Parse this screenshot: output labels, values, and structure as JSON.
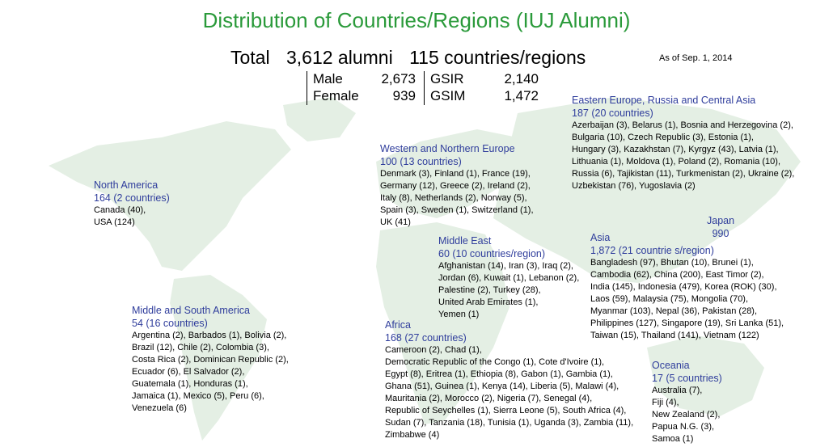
{
  "title": "Distribution of Countries/Regions (IUJ Alumni)",
  "total": {
    "label": "Total",
    "alumni": "3,612 alumni",
    "countries": "115 countries/regions"
  },
  "as_of": "As of Sep. 1, 2014",
  "breakdown": {
    "male_label": "Male",
    "male_value": "2,673",
    "female_label": "Female",
    "female_value": "939",
    "gsir_label": "GSIR",
    "gsir_value": "2,140",
    "gsim_label": "GSIM",
    "gsim_value": "1,472"
  },
  "colors": {
    "title": "#2a9a3a",
    "region": "#2f3d9c",
    "land": "#e4efe4"
  },
  "regions": {
    "north_america": {
      "name": "North America",
      "count": "164 (2 countries)",
      "lines": [
        "Canada (40),",
        "USA (124)"
      ]
    },
    "middle_south_america": {
      "name": "Middle and South America",
      "count": "54 (16 countries)",
      "lines": [
        "Argentina (2), Barbados (1), Bolivia (2),",
        "Brazil (12), Chile (2), Colombia (3),",
        "Costa Rica (2), Dominican Republic (2),",
        "Ecuador (6), El Salvador (2),",
        "Guatemala (1), Honduras (1),",
        "Jamaica (1), Mexico (5), Peru (6),",
        "Venezuela (6)"
      ]
    },
    "western_northern_europe": {
      "name": "Western and Northern Europe",
      "count": "100 (13 countries)",
      "lines": [
        "Denmark (3), Finland (1), France (19),",
        "Germany (12), Greece (2), Ireland (2),",
        "Italy (8), Netherlands (2), Norway (5),",
        "Spain (3), Sweden (1), Switzerland (1),",
        "UK (41)"
      ]
    },
    "eastern_europe": {
      "name": "Eastern Europe, Russia and Central Asia",
      "count": "187 (20 countries)",
      "lines": [
        "Azerbaijan (3), Belarus (1), Bosnia and Herzegovina (2),",
        "Bulgaria (10), Czech Republic (3), Estonia (1),",
        "Hungary (3), Kazakhstan (7), Kyrgyz (43), Latvia (1),",
        "Lithuania (1), Moldova (1), Poland (2), Romania (10),",
        "Russia (6), Tajikistan (11), Turkmenistan (2), Ukraine (2),",
        "Uzbekistan (76), Yugoslavia (2)"
      ]
    },
    "middle_east": {
      "name": "Middle East",
      "count": "60 (10 countries/region)",
      "lines": [
        "Afghanistan (14), Iran (3), Iraq (2),",
        "Jordan (6), Kuwait (1), Lebanon (2),",
        "Palestine (2), Turkey (28),",
        "United Arab Emirates (1),",
        "Yemen (1)"
      ]
    },
    "japan": {
      "name": "Japan",
      "count": "990"
    },
    "asia": {
      "name": "Asia",
      "count": "1,872 (21 countrie s/region)",
      "lines": [
        "Bangladesh (97), Bhutan (10), Brunei (1),",
        "Cambodia (62), China (200), East Timor (2),",
        "India (145), Indonesia (479), Korea (ROK) (30),",
        "Laos (59), Malaysia (75), Mongolia (70),",
        "Myanmar (103), Nepal (36), Pakistan (28),",
        "Philippines (127), Singapore (19), Sri Lanka (51),",
        "Taiwan (15), Thailand (141), Vietnam (122)"
      ]
    },
    "africa": {
      "name": "Africa",
      "count": "168 (27 countries)",
      "lines": [
        "Cameroon (2), Chad (1),",
        "Democratic Republic of the Congo (1), Cote d'Ivoire (1),",
        "Egypt (8), Eritrea (1), Ethiopia (8), Gabon (1), Gambia (1),",
        "Ghana (51), Guinea (1), Kenya (14), Liberia (5), Malawi (4),",
        "Mauritania (2), Morocco (2), Nigeria (7), Senegal (4),",
        "Republic of Seychelles (1), Sierra Leone (5), South Africa (4),",
        "Sudan (7), Tanzania (18), Tunisia (1), Uganda (3), Zambia (11),",
        "Zimbabwe (4)"
      ]
    },
    "oceania": {
      "name": "Oceania",
      "count": "17 (5 countries)",
      "lines": [
        "Australia (7),",
        "Fiji (4),",
        "New Zealand (2),",
        "Papua N.G. (3),",
        "Samoa (1)"
      ]
    }
  }
}
